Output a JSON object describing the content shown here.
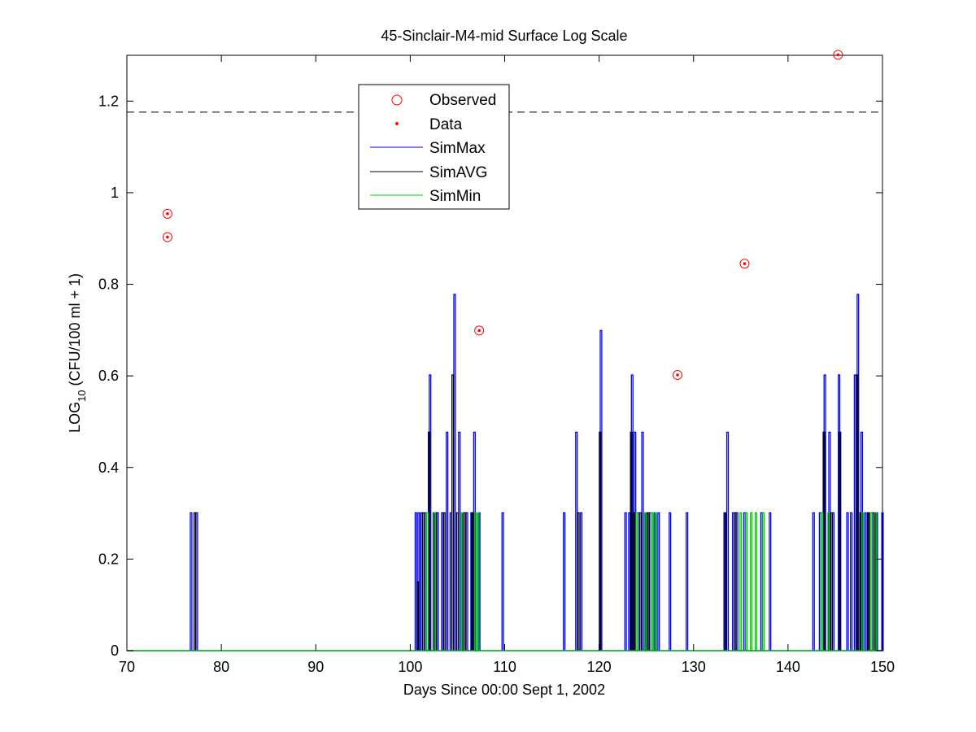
{
  "chart_data": {
    "type": "line",
    "title": "45-Sinclair-M4-mid Surface Log Scale",
    "xlabel": "Days Since 00:00 Sept 1, 2002",
    "ylabel_main": "LOG",
    "ylabel_sub": "10",
    "ylabel_rest": " (CFU/100 ml + 1)",
    "xlim": [
      70,
      150
    ],
    "ylim": [
      0,
      1.3
    ],
    "x_ticks": [
      70,
      80,
      90,
      100,
      110,
      120,
      130,
      140,
      150
    ],
    "y_ticks": [
      0,
      0.2,
      0.4,
      0.6,
      0.8,
      1,
      1.2
    ],
    "reference_line": {
      "y": 1.176,
      "style": "dashed",
      "color": "#000000"
    },
    "legend": {
      "position": "top-center",
      "entries": [
        {
          "label": "Observed",
          "marker": "circle",
          "color": "#ff0000"
        },
        {
          "label": "Data",
          "marker": "dot",
          "color": "#ff0000"
        },
        {
          "label": "SimMax",
          "marker": "line",
          "color": "#0000ff"
        },
        {
          "label": "SimAVG",
          "marker": "line",
          "color": "#000000"
        },
        {
          "label": "SimMin",
          "marker": "line",
          "color": "#00cc00"
        }
      ]
    },
    "observed_points": [
      {
        "x": 74.3,
        "y": 0.954
      },
      {
        "x": 74.3,
        "y": 0.903
      },
      {
        "x": 107.3,
        "y": 0.699
      },
      {
        "x": 128.3,
        "y": 0.602
      },
      {
        "x": 135.4,
        "y": 0.845
      },
      {
        "x": 145.3,
        "y": 1.301
      }
    ],
    "series": [
      {
        "name": "SimMax",
        "color": "#0000ff",
        "spikes": [
          [
            76.8,
            0.301
          ],
          [
            77.4,
            0.301
          ],
          [
            100.6,
            0.301
          ],
          [
            100.9,
            0.301
          ],
          [
            101.2,
            0.301
          ],
          [
            101.6,
            0.301
          ],
          [
            102.1,
            0.602
          ],
          [
            102.5,
            0.301
          ],
          [
            102.9,
            0.301
          ],
          [
            103.4,
            0.301
          ],
          [
            103.9,
            0.477
          ],
          [
            104.3,
            0.301
          ],
          [
            104.7,
            0.778
          ],
          [
            105.2,
            0.477
          ],
          [
            105.6,
            0.301
          ],
          [
            106.0,
            0.301
          ],
          [
            106.5,
            0.301
          ],
          [
            106.8,
            0.477
          ],
          [
            107.3,
            0.301
          ],
          [
            109.8,
            0.301
          ],
          [
            116.3,
            0.301
          ],
          [
            117.6,
            0.477
          ],
          [
            118.1,
            0.301
          ],
          [
            120.2,
            0.699
          ],
          [
            122.8,
            0.301
          ],
          [
            123.2,
            0.301
          ],
          [
            123.5,
            0.602
          ],
          [
            123.8,
            0.477
          ],
          [
            124.2,
            0.301
          ],
          [
            124.6,
            0.477
          ],
          [
            125.0,
            0.301
          ],
          [
            125.4,
            0.301
          ],
          [
            125.9,
            0.301
          ],
          [
            126.3,
            0.301
          ],
          [
            127.5,
            0.301
          ],
          [
            129.3,
            0.301
          ],
          [
            133.3,
            0.301
          ],
          [
            133.6,
            0.477
          ],
          [
            134.2,
            0.301
          ],
          [
            134.6,
            0.301
          ],
          [
            135.4,
            0.301
          ],
          [
            137.2,
            0.301
          ],
          [
            138.1,
            0.301
          ],
          [
            142.7,
            0.301
          ],
          [
            143.4,
            0.301
          ],
          [
            143.9,
            0.602
          ],
          [
            144.4,
            0.477
          ],
          [
            144.8,
            0.301
          ],
          [
            145.4,
            0.602
          ],
          [
            146.3,
            0.301
          ],
          [
            146.7,
            0.301
          ],
          [
            147.1,
            0.602
          ],
          [
            147.4,
            0.778
          ],
          [
            147.8,
            0.477
          ],
          [
            148.2,
            0.301
          ],
          [
            148.6,
            0.301
          ],
          [
            149.0,
            0.301
          ],
          [
            149.4,
            0.301
          ],
          [
            150.0,
            0.301
          ]
        ]
      },
      {
        "name": "SimAVG",
        "color": "#000000",
        "spikes": [
          [
            77.2,
            0.301
          ],
          [
            100.8,
            0.15
          ],
          [
            101.4,
            0.301
          ],
          [
            102.0,
            0.477
          ],
          [
            102.7,
            0.301
          ],
          [
            103.6,
            0.301
          ],
          [
            104.5,
            0.602
          ],
          [
            105.0,
            0.301
          ],
          [
            105.8,
            0.301
          ],
          [
            106.6,
            0.301
          ],
          [
            117.8,
            0.301
          ],
          [
            120.1,
            0.477
          ],
          [
            123.4,
            0.477
          ],
          [
            123.7,
            0.301
          ],
          [
            124.4,
            0.301
          ],
          [
            125.2,
            0.301
          ],
          [
            133.4,
            0.301
          ],
          [
            134.4,
            0.301
          ],
          [
            143.8,
            0.477
          ],
          [
            144.6,
            0.301
          ],
          [
            145.5,
            0.477
          ],
          [
            147.3,
            0.602
          ],
          [
            147.7,
            0.301
          ],
          [
            148.5,
            0.301
          ],
          [
            149.2,
            0.301
          ]
        ]
      },
      {
        "name": "SimMin",
        "color": "#00cc00",
        "spikes": [
          [
            101.8,
            0.301
          ],
          [
            102.6,
            0.301
          ],
          [
            105.5,
            0.301
          ],
          [
            106.9,
            0.301
          ],
          [
            107.2,
            0.301
          ],
          [
            124.0,
            0.301
          ],
          [
            124.9,
            0.301
          ],
          [
            125.6,
            0.301
          ],
          [
            126.0,
            0.301
          ],
          [
            135.0,
            0.301
          ],
          [
            135.6,
            0.301
          ],
          [
            136.1,
            0.301
          ],
          [
            136.6,
            0.301
          ],
          [
            137.4,
            0.301
          ],
          [
            143.6,
            0.301
          ],
          [
            144.3,
            0.301
          ],
          [
            147.9,
            0.301
          ],
          [
            148.8,
            0.301
          ],
          [
            149.3,
            0.301
          ]
        ]
      }
    ]
  }
}
